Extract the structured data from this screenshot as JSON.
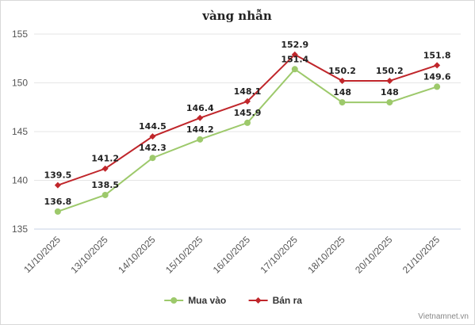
{
  "chart_data": {
    "type": "line",
    "title": "vàng nhẫn",
    "categories": [
      "11/10/2025",
      "13/10/2025",
      "14/10/2025",
      "15/10/2025",
      "16/10/2025",
      "17/10/2025",
      "18/10/2025",
      "20/10/2025",
      "21/10/2025"
    ],
    "series": [
      {
        "name": "Mua vào",
        "color": "#9dc96b",
        "marker": "circle",
        "values": [
          136.8,
          138.5,
          142.3,
          144.2,
          145.9,
          151.4,
          148,
          148,
          149.6
        ]
      },
      {
        "name": "Bán ra",
        "color": "#c0262b",
        "marker": "diamond",
        "values": [
          139.5,
          141.2,
          144.5,
          146.4,
          148.1,
          152.9,
          150.2,
          150.2,
          151.8
        ]
      }
    ],
    "xlabel": "",
    "ylabel": "",
    "ylim": [
      135,
      155
    ],
    "yticks": [
      135,
      140,
      145,
      150,
      155
    ],
    "grid": true,
    "legend_position": "bottom-center"
  },
  "credit": "Vietnamnet.vn"
}
